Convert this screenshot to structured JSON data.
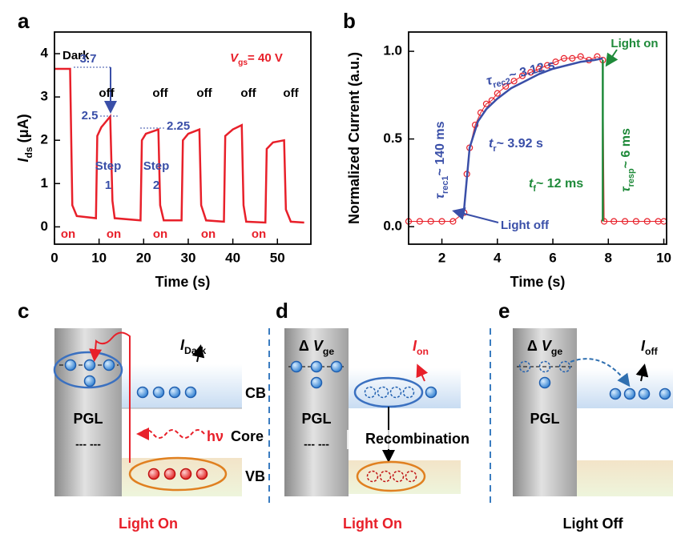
{
  "panel_labels": [
    "a",
    "b",
    "c",
    "d",
    "e"
  ],
  "chart_data": [
    {
      "type": "line",
      "xlabel": "Time (s)",
      "ylabel": {
        "main": "I",
        "sub": "ds",
        "rest": " (μA)"
      },
      "xlim": [
        0,
        57.5
      ],
      "ylim": [
        -0.4,
        4.5
      ],
      "xticks": [
        0,
        10,
        20,
        30,
        40,
        50
      ],
      "yticks": [
        0,
        1,
        2,
        3,
        4
      ],
      "series": [
        {
          "color": "#e8202a",
          "style": "line",
          "x": [
            0,
            3.5,
            4,
            5,
            9.3,
            9.6,
            10.5,
            12.5,
            13,
            13.5,
            19.3,
            19.6,
            20.5,
            23.3,
            23.7,
            24.5,
            28.5,
            28.8,
            30,
            32.5,
            32.9,
            34,
            38,
            38.3,
            40,
            42,
            42.4,
            43,
            47.3,
            47.6,
            49,
            51.5,
            51.9,
            53,
            56
          ],
          "values": [
            3.65,
            3.65,
            0.5,
            0.25,
            0.2,
            2.1,
            2.3,
            2.55,
            0.6,
            0.2,
            0.15,
            2.0,
            2.15,
            2.25,
            0.5,
            0.15,
            0.15,
            2.0,
            2.15,
            2.25,
            0.5,
            0.15,
            0.12,
            2.1,
            2.25,
            2.35,
            0.5,
            0.12,
            0.1,
            1.8,
            1.95,
            2.0,
            0.4,
            0.12,
            0.1
          ]
        }
      ],
      "annotations": {
        "dark": "Dark",
        "level_dark": "3.7",
        "level_1": "2.5",
        "level_2": "2.25",
        "off": [
          "off",
          "off",
          "off",
          "off",
          "off"
        ],
        "on": [
          "on",
          "on",
          "on",
          "on",
          "on"
        ],
        "step_1": [
          "Step",
          "1"
        ],
        "step_2": [
          "Step",
          "2"
        ],
        "gate": {
          "main": "V",
          "sub": "gs",
          "rest": "= 40 V"
        }
      }
    },
    {
      "type": "line",
      "xlabel": "Time (s)",
      "ylabel": {
        "rest": "Normalized Current (a.u.)"
      },
      "xlim": [
        0.8,
        10.1
      ],
      "ylim": [
        -0.1,
        1.11
      ],
      "xticks": [
        2,
        4,
        6,
        8,
        10
      ],
      "yticks": [
        {
          "value": 0,
          "label": "0.0"
        },
        0.5,
        {
          "value": 1,
          "label": "1.0"
        }
      ],
      "series": [
        {
          "color": "#e8202a",
          "style": "markers",
          "x": [
            0.8,
            1.2,
            1.6,
            2.0,
            2.4,
            2.8,
            2.9,
            3.0,
            3.2,
            3.4,
            3.6,
            3.8,
            4.0,
            4.3,
            4.6,
            4.9,
            5.2,
            5.5,
            5.8,
            6.1,
            6.4,
            6.7,
            7.0,
            7.3,
            7.6,
            7.8,
            7.85,
            8.2,
            8.6,
            9.0,
            9.4,
            9.8,
            10.0
          ],
          "values": [
            0.03,
            0.03,
            0.03,
            0.03,
            0.03,
            0.08,
            0.3,
            0.45,
            0.58,
            0.65,
            0.7,
            0.72,
            0.76,
            0.8,
            0.83,
            0.86,
            0.88,
            0.9,
            0.92,
            0.94,
            0.96,
            0.96,
            0.97,
            0.95,
            0.97,
            0.95,
            0.03,
            0.03,
            0.03,
            0.03,
            0.03,
            0.03,
            0.03
          ]
        },
        {
          "color": "#3a4fa8",
          "style": "line",
          "x": [
            2.8,
            3.0,
            3.3,
            3.6,
            4.0,
            4.5,
            5,
            5.5,
            6,
            6.5,
            7,
            7.5,
            7.8
          ],
          "values": [
            0.1,
            0.45,
            0.6,
            0.67,
            0.73,
            0.79,
            0.83,
            0.87,
            0.9,
            0.92,
            0.94,
            0.95,
            0.96
          ]
        },
        {
          "color": "#1f8a3a",
          "style": "line",
          "x": [
            7.8,
            7.8
          ],
          "values": [
            0.95,
            0.03
          ]
        }
      ],
      "annotations": {
        "rec2": {
          "main": "τ",
          "sub": "rec2",
          "rest": "~ 3.12 s"
        },
        "light_on": "Light on",
        "rec1": {
          "main": "τ",
          "sub": "rec1",
          "rest": "~ 140 ms"
        },
        "rise": {
          "main": "t",
          "sub": "r",
          "rest": "~ 3.92 s"
        },
        "fall": {
          "main": "t",
          "sub": "f",
          "rest": "~ 12 ms"
        },
        "resp": {
          "main": "τ",
          "sub": "resp",
          "rest": "~ 6 ms"
        },
        "light_off": "Light off"
      }
    }
  ],
  "diagrams": [
    {
      "current": {
        "main": "I",
        "sub": "Dark"
      },
      "material": "PGL",
      "trap_levels": "--- ---",
      "bands": [
        "CB",
        "Core",
        "VB"
      ],
      "photon": "hν",
      "caption": "Light On"
    },
    {
      "gate": {
        "pre": "Δ ",
        "main": "V",
        "sub": "ge"
      },
      "current": {
        "main": "I",
        "sub": "on"
      },
      "material": "PGL",
      "trap_levels": "--- ---",
      "process": "Recombination",
      "caption": "Light On"
    },
    {
      "gate": {
        "pre": "Δ ",
        "main": "V",
        "sub": "ge"
      },
      "current": {
        "main": "I",
        "sub": "off"
      },
      "material": "PGL",
      "caption": "Light Off"
    }
  ]
}
